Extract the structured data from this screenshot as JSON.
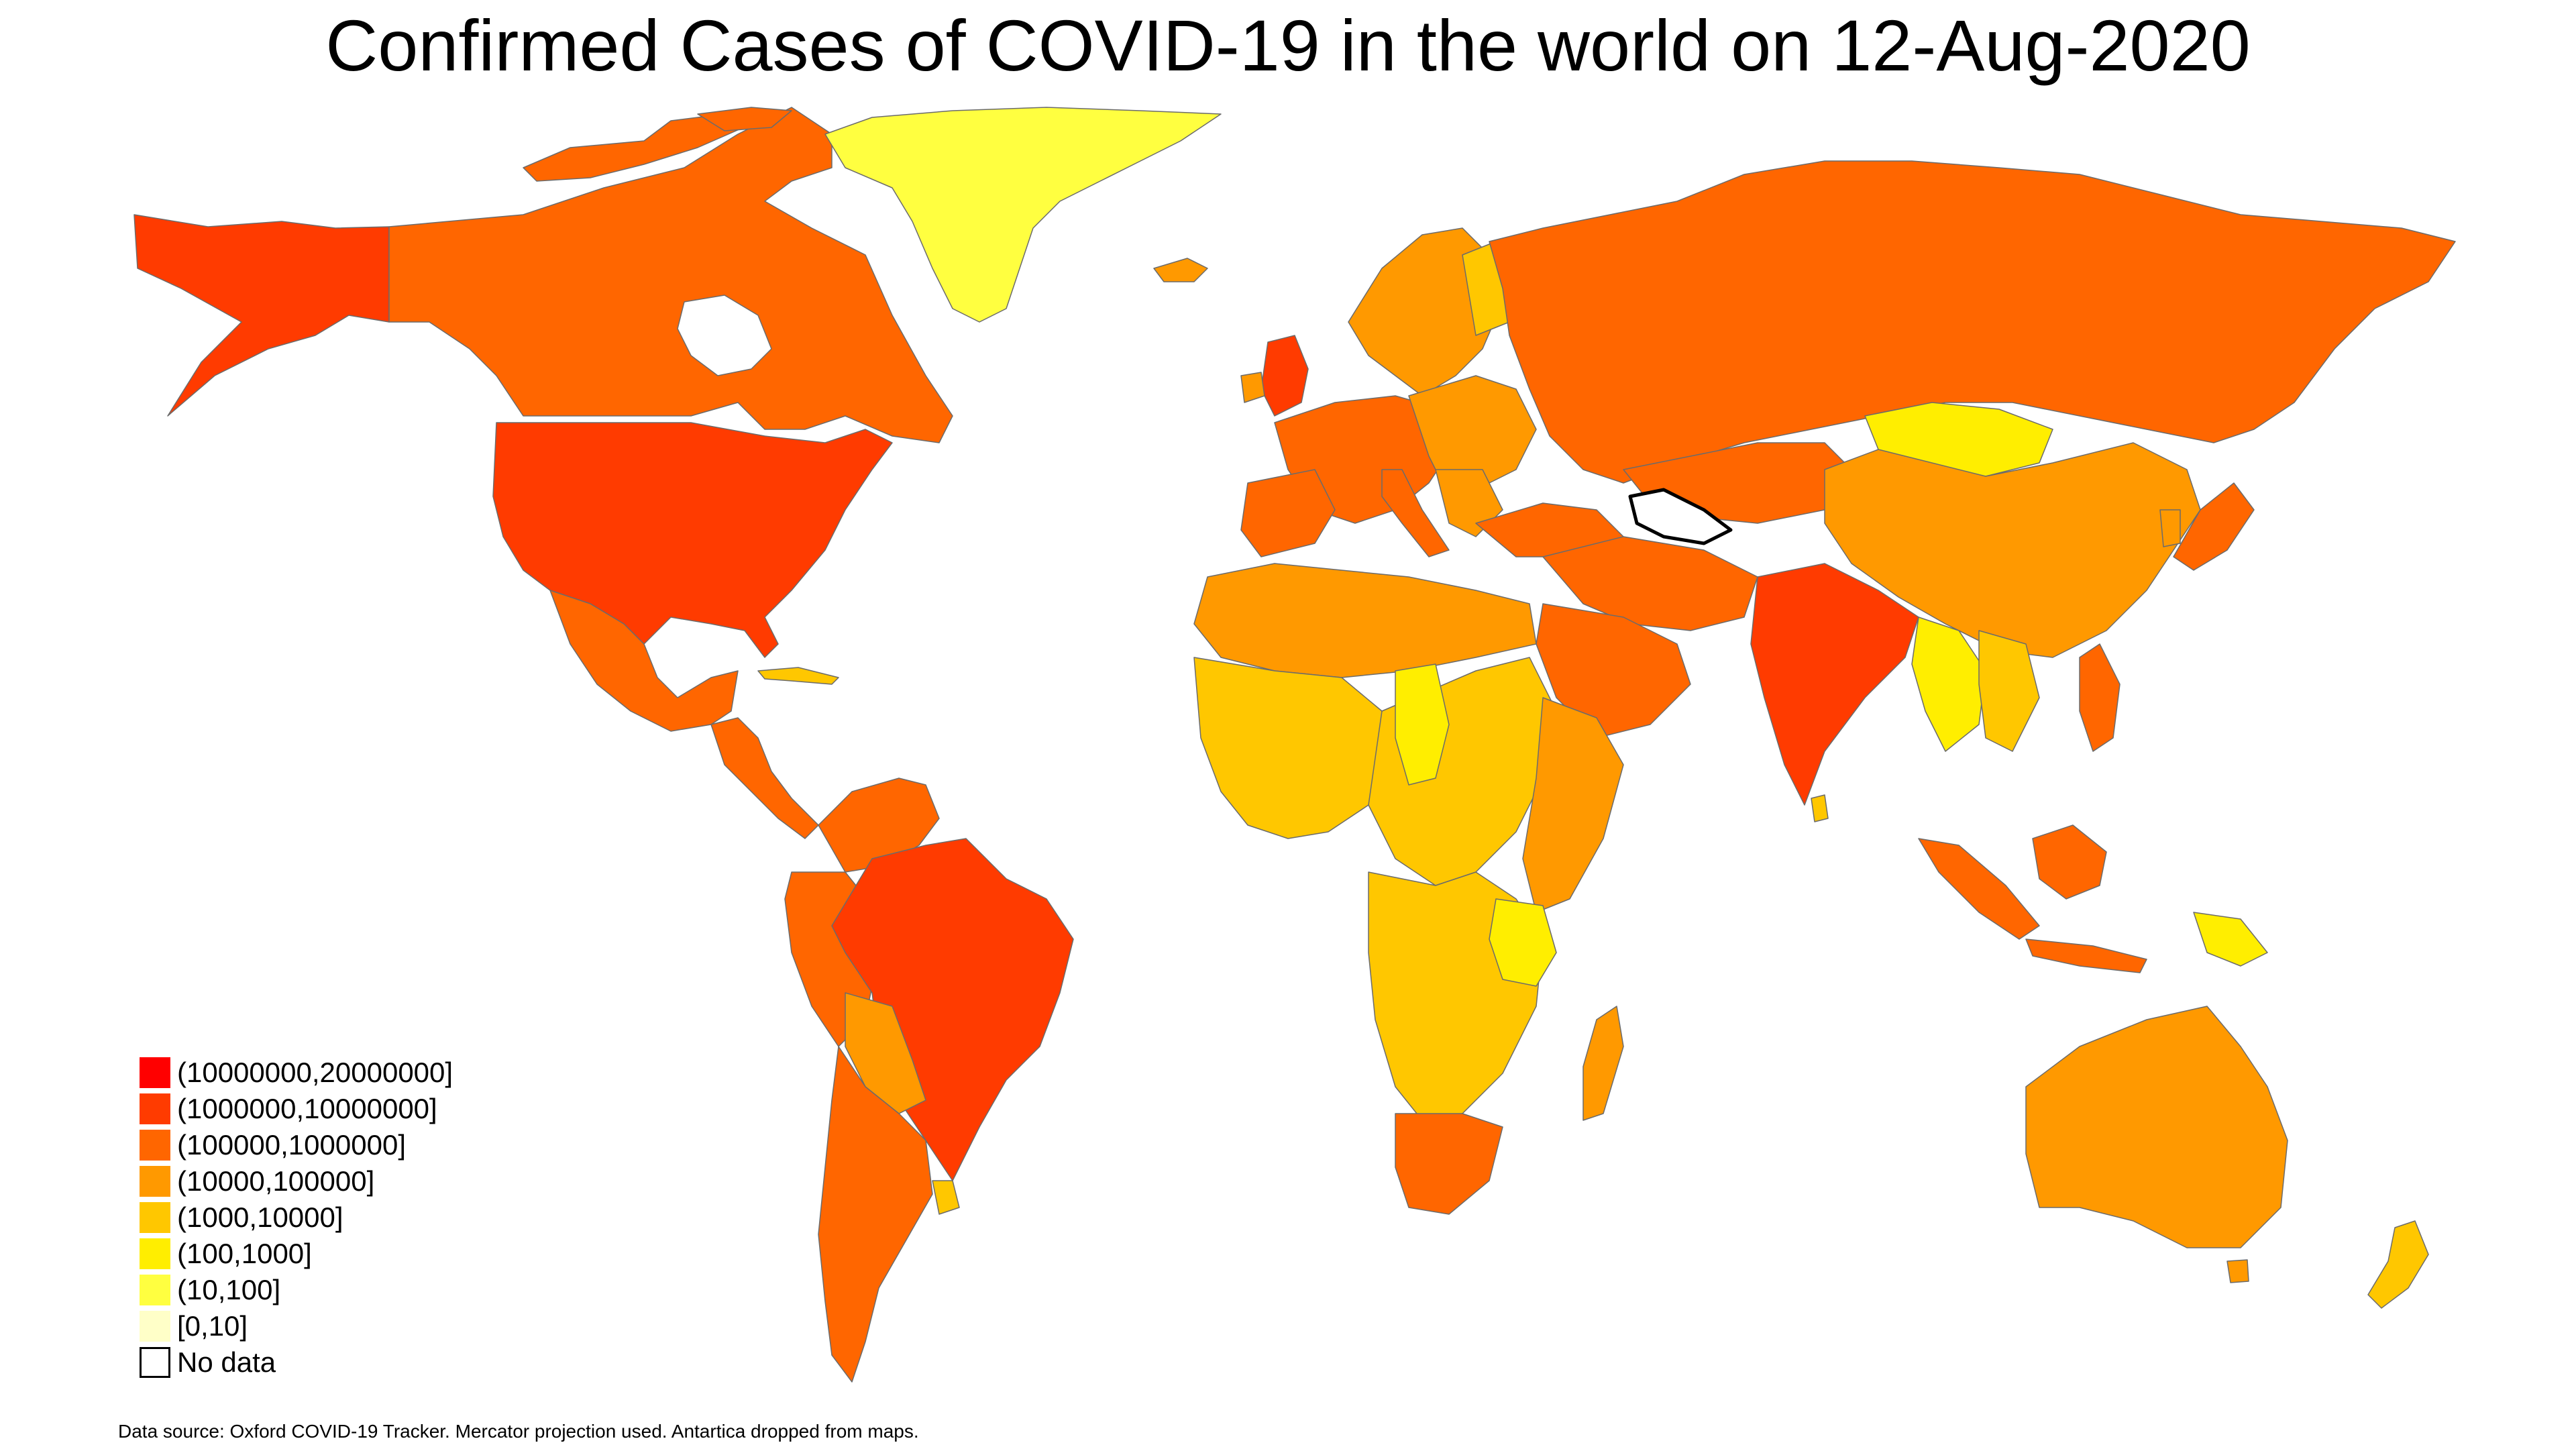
{
  "title": "Confirmed Cases of COVID-19 in the world on 12-Aug-2020",
  "colors": {
    "c10m_20m": "#ff0000",
    "c1m_10m": "#ff3b00",
    "c100k_1m": "#ff6600",
    "c10k_100k": "#ff9900",
    "c1k_10k": "#ffc700",
    "c100_1k": "#ffee00",
    "c10_100": "#ffff40",
    "c0_10": "#ffffc8",
    "nodata": "#ffffff"
  },
  "legend": [
    {
      "label": "(10000000,20000000]",
      "color": "#ff0000"
    },
    {
      "label": "(1000000,10000000]",
      "color": "#ff3b00"
    },
    {
      "label": "(100000,1000000]",
      "color": "#ff6600"
    },
    {
      "label": "(10000,100000]",
      "color": "#ff9900"
    },
    {
      "label": "(1000,10000]",
      "color": "#ffc700"
    },
    {
      "label": "(100,1000]",
      "color": "#ffee00"
    },
    {
      "label": "(10,100]",
      "color": "#ffff40"
    },
    {
      "label": "[0,10]",
      "color": "#ffffc8"
    },
    {
      "label": "No data",
      "color": "#ffffff"
    }
  ],
  "source_note": "Data source: Oxford COVID-19 Tracker. Mercator projection used. Antartica dropped from maps."
}
